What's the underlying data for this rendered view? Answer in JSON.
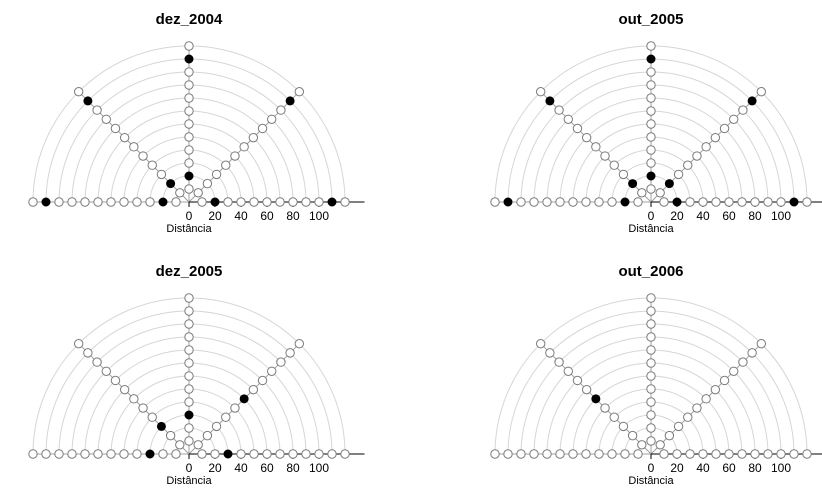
{
  "chart_data": [
    {
      "type": "scatter",
      "title": "dez_2004",
      "xlabel": "Distância",
      "x_ticks": [
        0,
        20,
        40,
        60,
        80,
        100
      ],
      "rings": [
        10,
        20,
        30,
        40,
        50,
        60,
        70,
        80,
        90,
        100,
        110,
        120
      ],
      "directions": [
        0,
        45,
        90,
        135,
        180
      ],
      "filled": [
        {
          "direction": 0,
          "distance": 20
        },
        {
          "direction": 0,
          "distance": 110
        },
        {
          "direction": 45,
          "distance": 110
        },
        {
          "direction": 90,
          "distance": 20
        },
        {
          "direction": 90,
          "distance": 110
        },
        {
          "direction": 135,
          "distance": 20
        },
        {
          "direction": 135,
          "distance": 110
        },
        {
          "direction": 180,
          "distance": 20
        },
        {
          "direction": 180,
          "distance": 110
        }
      ]
    },
    {
      "type": "scatter",
      "title": "out_2005",
      "xlabel": "Distância",
      "x_ticks": [
        0,
        20,
        40,
        60,
        80,
        100
      ],
      "rings": [
        10,
        20,
        30,
        40,
        50,
        60,
        70,
        80,
        90,
        100,
        110,
        120
      ],
      "directions": [
        0,
        45,
        90,
        135,
        180
      ],
      "filled": [
        {
          "direction": 0,
          "distance": 20
        },
        {
          "direction": 0,
          "distance": 110
        },
        {
          "direction": 45,
          "distance": 20
        },
        {
          "direction": 45,
          "distance": 110
        },
        {
          "direction": 90,
          "distance": 20
        },
        {
          "direction": 90,
          "distance": 110
        },
        {
          "direction": 135,
          "distance": 20
        },
        {
          "direction": 135,
          "distance": 110
        },
        {
          "direction": 180,
          "distance": 20
        },
        {
          "direction": 180,
          "distance": 110
        }
      ]
    },
    {
      "type": "scatter",
      "title": "dez_2005",
      "xlabel": "Distância",
      "x_ticks": [
        0,
        20,
        40,
        60,
        80,
        100
      ],
      "rings": [
        10,
        20,
        30,
        40,
        50,
        60,
        70,
        80,
        90,
        100,
        110,
        120
      ],
      "directions": [
        0,
        45,
        90,
        135,
        180
      ],
      "filled": [
        {
          "direction": 0,
          "distance": 30
        },
        {
          "direction": 45,
          "distance": 60
        },
        {
          "direction": 90,
          "distance": 30
        },
        {
          "direction": 135,
          "distance": 30
        },
        {
          "direction": 180,
          "distance": 30
        }
      ]
    },
    {
      "type": "scatter",
      "title": "out_2006",
      "xlabel": "Distância",
      "x_ticks": [
        0,
        20,
        40,
        60,
        80,
        100
      ],
      "rings": [
        10,
        20,
        30,
        40,
        50,
        60,
        70,
        80,
        90,
        100,
        110,
        120
      ],
      "directions": [
        0,
        45,
        90,
        135,
        180
      ],
      "filled": [
        {
          "direction": 135,
          "distance": 60
        }
      ]
    }
  ]
}
